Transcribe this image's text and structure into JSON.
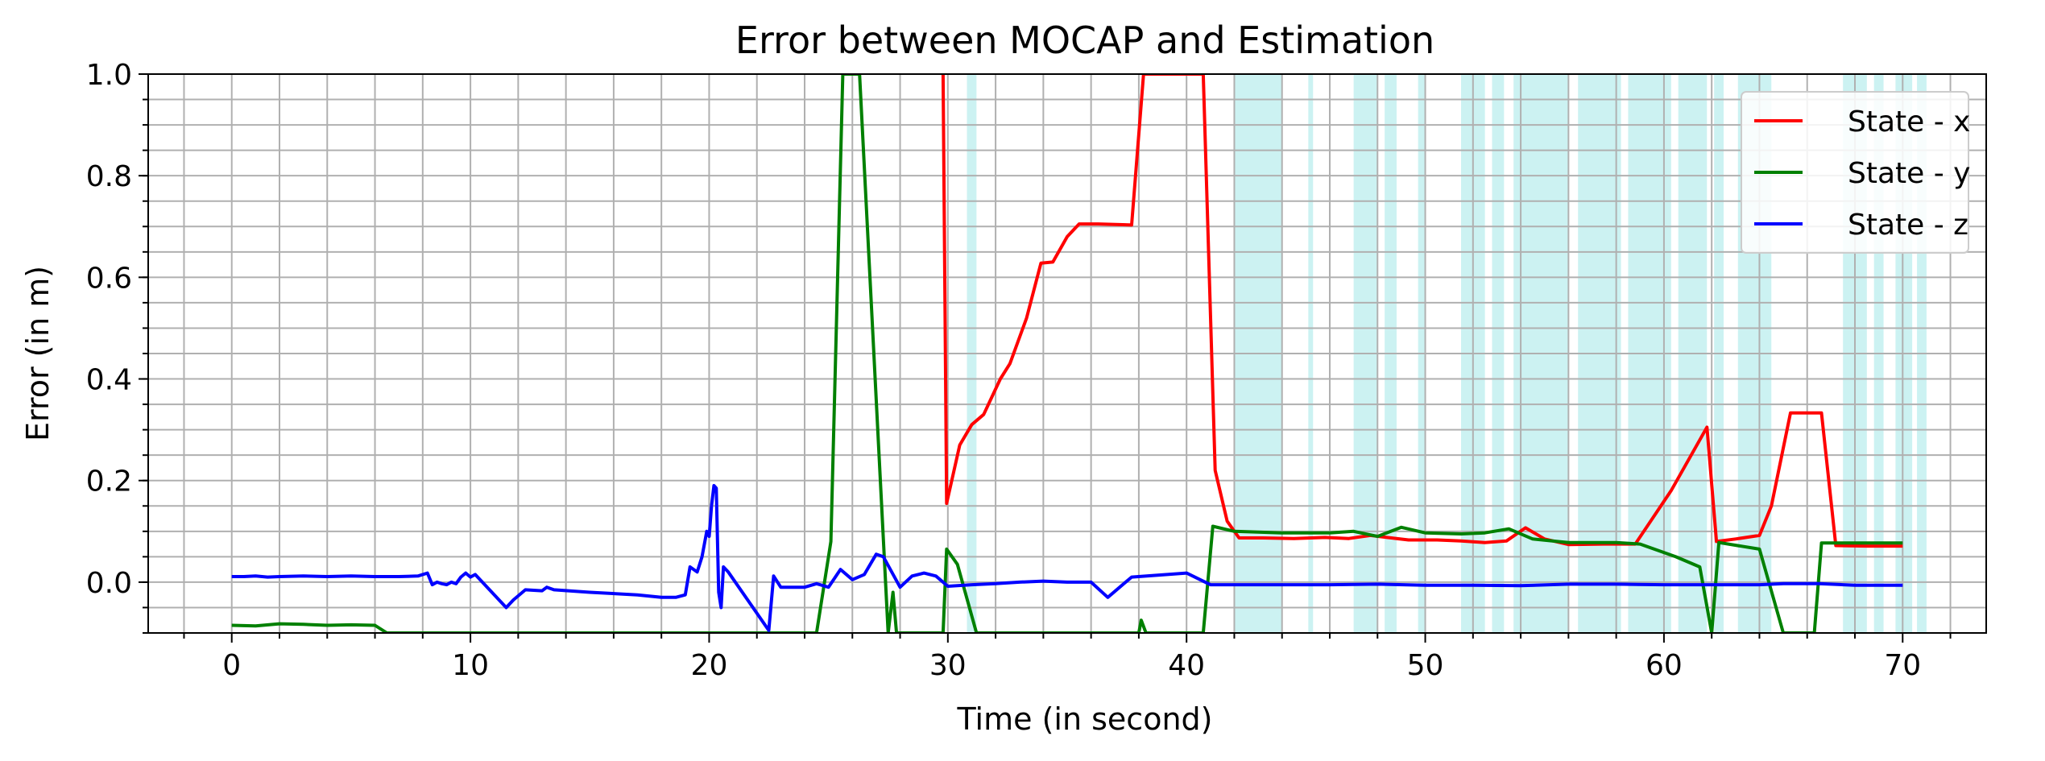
{
  "chart_data": {
    "type": "line",
    "title": "Error between MOCAP and Estimation",
    "xlabel": "Time (in second)",
    "ylabel": "Error (in m)",
    "xlim": [
      -3.5,
      73.5
    ],
    "ylim": [
      -0.1,
      1.0
    ],
    "xticks": [
      0,
      10,
      20,
      30,
      40,
      50,
      60,
      70
    ],
    "yticks": [
      0.0,
      0.2,
      0.4,
      0.6,
      0.8,
      1.0
    ],
    "xtick_labels": [
      "0",
      "10",
      "20",
      "30",
      "40",
      "50",
      "60",
      "70"
    ],
    "ytick_labels": [
      "0.0",
      "0.2",
      "0.4",
      "0.6",
      "0.8",
      "1.0"
    ],
    "grid": true,
    "minor_grid": true,
    "legend": {
      "placement": "top-right",
      "entries": [
        "State - x",
        "State - y",
        "State - z"
      ]
    },
    "series": [
      {
        "name": "State - x",
        "color": "#ff0000",
        "x": [
          29.8,
          29.95,
          30.5,
          31.0,
          31.5,
          32.2,
          32.6,
          33.3,
          33.9,
          34.4,
          35.0,
          35.5,
          36.3,
          37.7,
          38.2,
          40.7,
          41.2,
          41.7,
          42.2,
          43.2,
          44.5,
          45.8,
          46.8,
          47.7,
          48.4,
          49.3,
          50.5,
          51.5,
          52.5,
          53.4,
          54.2,
          55.0,
          56.0,
          57.5,
          58.8,
          60.3,
          61.8,
          62.2,
          63.0,
          64.0,
          64.5,
          65.3,
          65.8,
          66.6,
          67.2,
          68.5,
          70.0
        ],
        "y": [
          1.0,
          0.155,
          0.27,
          0.31,
          0.33,
          0.4,
          0.43,
          0.52,
          0.628,
          0.63,
          0.68,
          0.705,
          0.705,
          0.703,
          1.0,
          1.0,
          0.22,
          0.12,
          0.087,
          0.087,
          0.086,
          0.088,
          0.086,
          0.092,
          0.088,
          0.083,
          0.083,
          0.081,
          0.078,
          0.081,
          0.107,
          0.085,
          0.074,
          0.075,
          0.075,
          0.18,
          0.305,
          0.08,
          0.085,
          0.092,
          0.15,
          0.333,
          0.333,
          0.333,
          0.072,
          0.071,
          0.071
        ]
      },
      {
        "name": "State - y",
        "color": "#008000",
        "x": [
          0.0,
          1.0,
          2.0,
          3.0,
          4.0,
          5.0,
          6.0,
          6.5,
          24.5,
          25.1,
          25.6,
          26.3,
          27.5,
          27.7,
          27.85,
          29.8,
          29.95,
          30.4,
          31.2,
          38.0,
          38.1,
          38.3,
          40.7,
          41.1,
          42.0,
          44.0,
          46.0,
          47.0,
          48.0,
          49.0,
          50.0,
          51.5,
          52.5,
          53.5,
          54.5,
          56.0,
          58.0,
          59.0,
          60.5,
          61.5,
          62.0,
          62.3,
          64.0,
          65.0,
          66.3,
          66.6,
          67.0,
          68.5,
          70.0
        ],
        "y": [
          -0.085,
          -0.086,
          -0.082,
          -0.083,
          -0.085,
          -0.084,
          -0.085,
          -0.1,
          -0.1,
          0.08,
          1.0,
          1.0,
          -0.1,
          -0.02,
          -0.1,
          -0.1,
          0.065,
          0.035,
          -0.1,
          -0.1,
          -0.075,
          -0.1,
          -0.1,
          0.11,
          0.1,
          0.097,
          0.097,
          0.1,
          0.09,
          0.108,
          0.097,
          0.095,
          0.097,
          0.105,
          0.085,
          0.078,
          0.078,
          0.075,
          0.05,
          0.03,
          -0.1,
          0.078,
          0.065,
          -0.1,
          -0.1,
          0.077,
          0.077,
          0.077,
          0.077
        ]
      },
      {
        "name": "State - z",
        "color": "#0000ff",
        "x": [
          0.0,
          0.5,
          1.0,
          1.5,
          2.0,
          3.0,
          4.0,
          5.0,
          6.0,
          7.0,
          7.8,
          8.2,
          8.4,
          8.6,
          8.8,
          9.0,
          9.2,
          9.4,
          9.6,
          9.8,
          10.0,
          10.2,
          11.5,
          11.8,
          12.3,
          13.0,
          13.2,
          13.5,
          15.0,
          17.0,
          18.0,
          18.6,
          19.0,
          19.2,
          19.5,
          19.7,
          19.9,
          20.0,
          20.1,
          20.2,
          20.3,
          20.4,
          20.5,
          20.6,
          20.8,
          22.5,
          22.7,
          23.0,
          24.0,
          24.5,
          25.0,
          25.5,
          26.0,
          26.5,
          27.0,
          27.3,
          28.0,
          28.5,
          29.0,
          29.5,
          30.0,
          31.0,
          32.0,
          33.0,
          34.0,
          35.0,
          36.0,
          36.7,
          37.7,
          40.0,
          41.0,
          42.0,
          44.0,
          46.0,
          48.0,
          50.0,
          52.0,
          54.0,
          56.0,
          58.0,
          60.0,
          62.0,
          64.0,
          65.0,
          66.5,
          68.0,
          70.0
        ],
        "y": [
          0.011,
          0.011,
          0.012,
          0.01,
          0.011,
          0.012,
          0.011,
          0.012,
          0.011,
          0.011,
          0.012,
          0.018,
          -0.005,
          0.0,
          -0.003,
          -0.005,
          0.0,
          -0.003,
          0.01,
          0.018,
          0.01,
          0.015,
          -0.05,
          -0.035,
          -0.015,
          -0.017,
          -0.01,
          -0.015,
          -0.02,
          -0.025,
          -0.03,
          -0.03,
          -0.025,
          0.03,
          0.02,
          0.05,
          0.1,
          0.09,
          0.15,
          0.19,
          0.185,
          -0.02,
          -0.05,
          0.03,
          0.02,
          -0.095,
          0.012,
          -0.01,
          -0.01,
          -0.003,
          -0.01,
          0.025,
          0.005,
          0.015,
          0.055,
          0.05,
          -0.01,
          0.012,
          0.018,
          0.012,
          -0.008,
          -0.005,
          -0.003,
          0.0,
          0.002,
          0.0,
          0.0,
          -0.03,
          0.01,
          0.018,
          -0.005,
          -0.005,
          -0.005,
          -0.005,
          -0.004,
          -0.006,
          -0.006,
          -0.007,
          -0.004,
          -0.004,
          -0.005,
          -0.005,
          -0.005,
          -0.003,
          -0.003,
          -0.006,
          -0.006
        ]
      }
    ],
    "highlight_bands": [
      [
        30.8,
        31.2
      ],
      [
        42.0,
        44.0
      ],
      [
        45.1,
        45.3
      ],
      [
        47.0,
        48.0
      ],
      [
        48.3,
        48.8
      ],
      [
        49.7,
        50.0
      ],
      [
        51.5,
        52.5
      ],
      [
        52.8,
        53.3
      ],
      [
        53.7,
        56.0
      ],
      [
        56.4,
        58.2
      ],
      [
        58.5,
        60.3
      ],
      [
        60.6,
        61.8
      ],
      [
        62.1,
        62.5
      ],
      [
        63.1,
        64.5
      ],
      [
        67.5,
        68.5
      ],
      [
        68.8,
        69.2
      ],
      [
        69.7,
        70.4
      ],
      [
        70.6,
        71.0
      ]
    ],
    "highlight_color": "#8fe3e3"
  }
}
